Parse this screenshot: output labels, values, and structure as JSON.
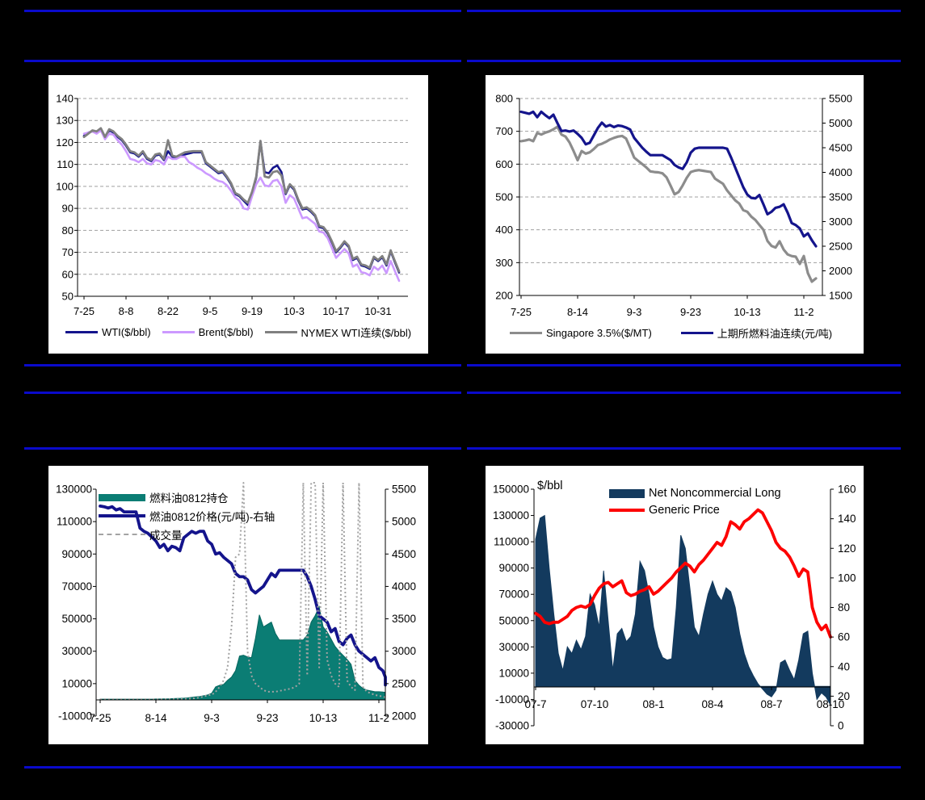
{
  "page": {
    "background": "#000000",
    "divider_color": "#0a0acb",
    "panel_background": "#ffffff"
  },
  "chart_data": [
    {
      "id": "crude-oil-prices",
      "type": "line",
      "grid": "dashed",
      "x_tick_labels": [
        "7-25",
        "8-8",
        "8-22",
        "9-5",
        "9-19",
        "10-3",
        "10-17",
        "10-31"
      ],
      "tick_every": 10,
      "left_axis": {
        "tick_labels": [
          "140",
          "130",
          "120",
          "110",
          "100",
          "90",
          "80",
          "70",
          "60",
          "50"
        ],
        "range": [
          50,
          140
        ]
      },
      "series": [
        {
          "name": "WTI($/bbl)",
          "style": "line",
          "axis": "left",
          "color": "#14148c",
          "width": 2.6,
          "values": [
            123,
            124.5,
            125,
            124.5,
            126,
            122,
            125.5,
            124.5,
            122.5,
            121,
            118.5,
            115.5,
            115,
            113.5,
            115.5,
            112.5,
            111.5,
            114,
            114.5,
            112,
            116,
            113.5,
            113,
            114,
            114.5,
            115,
            115.5,
            115.5,
            115.5,
            110.5,
            109,
            107.5,
            106,
            106.5,
            104,
            101,
            96.5,
            95.5,
            93.5,
            91.5,
            97,
            104,
            120.5,
            106.5,
            106,
            108.5,
            109.5,
            106.5,
            96.5,
            100.5,
            98.5,
            93.5,
            89.5,
            90,
            88.5,
            86.5,
            81.5,
            81,
            78.5,
            74.5,
            70,
            72,
            74.5,
            72.5,
            66.5,
            67.5,
            64,
            63.5,
            62.5,
            67.5,
            66,
            67.8,
            64,
            70.5,
            65.5,
            60.8
          ]
        },
        {
          "name": "Brent($/bbl)",
          "style": "line",
          "axis": "left",
          "color": "#cc99ff",
          "width": 2.6,
          "values": [
            124,
            124.5,
            125,
            124,
            125.5,
            121.5,
            124,
            123.5,
            121,
            119,
            116,
            112.5,
            112,
            111,
            112.5,
            110.5,
            110,
            112,
            111.5,
            110,
            113.5,
            112.5,
            112.5,
            113.5,
            113.5,
            111,
            110,
            108.5,
            107.5,
            106,
            105,
            103.5,
            102.5,
            102,
            100.5,
            98,
            95,
            93.5,
            90,
            89.5,
            95.5,
            101,
            104,
            100.5,
            100,
            102.5,
            103,
            100,
            92.5,
            96,
            94.5,
            90,
            85.5,
            86,
            84.5,
            83,
            79.5,
            79,
            76.5,
            72,
            67.5,
            69.5,
            71.5,
            69.5,
            63.5,
            64.5,
            61,
            60.5,
            59.5,
            63.5,
            62,
            64,
            60.5,
            66,
            61.5,
            57
          ]
        },
        {
          "name": "NYMEX WTI连续($/bbl)",
          "style": "line",
          "axis": "left",
          "color": "#808080",
          "width": 2.8,
          "values": [
            122.5,
            124,
            125.5,
            125,
            126.5,
            122.5,
            126,
            125,
            123,
            121.5,
            119,
            116,
            115.5,
            114,
            116,
            113,
            112,
            114.5,
            115,
            112.5,
            121,
            114,
            113.5,
            114.5,
            115.5,
            115.8,
            116,
            116,
            116,
            111,
            109.5,
            108,
            106.5,
            107,
            104.5,
            101.5,
            97,
            96,
            94,
            92.5,
            97.5,
            104.5,
            120.7,
            104.5,
            104,
            106.5,
            107,
            105,
            97,
            101,
            99,
            94,
            90,
            90.5,
            89,
            87,
            82,
            81.5,
            79,
            75,
            70.5,
            72.5,
            75,
            73,
            67,
            68,
            64.5,
            64,
            63,
            68,
            66.5,
            68.3,
            64.5,
            70.9,
            66,
            61.3
          ]
        }
      ]
    },
    {
      "id": "fuel-oil-singapore-shanghai",
      "type": "line",
      "grid": "dashed",
      "x_tick_labels": [
        "7-25",
        "8-14",
        "9-3",
        "9-23",
        "10-13",
        "11-2"
      ],
      "tick_every": 14,
      "left_axis": {
        "tick_labels": [
          "800",
          "700",
          "600",
          "500",
          "400",
          "300",
          "200"
        ],
        "range": [
          200,
          800
        ]
      },
      "right_axis": {
        "tick_labels": [
          "5500",
          "5000",
          "4500",
          "4000",
          "3500",
          "3000",
          "2500",
          "2000",
          "1500"
        ],
        "range": [
          1500,
          5500
        ]
      },
      "series": [
        {
          "name": "Singapore 3.5%($/MT)",
          "style": "line",
          "axis": "left",
          "color": "#8c8c8c",
          "width": 3.2,
          "values": [
            670,
            672,
            675,
            670,
            695,
            690,
            696,
            700,
            706,
            714,
            690,
            684,
            666,
            640,
            612,
            640,
            632,
            636,
            646,
            658,
            662,
            668,
            675,
            680,
            684,
            686,
            678,
            650,
            620,
            610,
            600,
            590,
            578,
            576,
            575,
            572,
            560,
            535,
            508,
            515,
            535,
            558,
            576,
            580,
            582,
            580,
            578,
            576,
            556,
            548,
            540,
            520,
            505,
            490,
            480,
            460,
            455,
            440,
            430,
            415,
            400,
            366,
            351,
            346,
            365,
            340,
            325,
            320,
            318,
            296,
            320,
            268,
            242,
            252
          ]
        },
        {
          "name": "上期所燃料油连续(元/吨)",
          "style": "line",
          "axis": "right",
          "color": "#14148c",
          "width": 3.2,
          "values": [
            5230,
            5210,
            5190,
            5230,
            5120,
            5230,
            5160,
            5100,
            5170,
            5000,
            4840,
            4850,
            4830,
            4850,
            4780,
            4700,
            4570,
            4600,
            4750,
            4900,
            5010,
            4930,
            4960,
            4920,
            4950,
            4940,
            4910,
            4870,
            4700,
            4600,
            4500,
            4420,
            4350,
            4350,
            4350,
            4350,
            4300,
            4250,
            4150,
            4100,
            4070,
            4200,
            4400,
            4480,
            4500,
            4500,
            4500,
            4500,
            4500,
            4500,
            4500,
            4480,
            4300,
            4100,
            3900,
            3700,
            3550,
            3480,
            3470,
            3540,
            3350,
            3150,
            3200,
            3280,
            3300,
            3350,
            3180,
            2970,
            2930,
            2860,
            2700,
            2760,
            2620,
            2500
          ]
        }
      ]
    },
    {
      "id": "fuel-oil-0812-contract",
      "type": "area",
      "grid": "none",
      "x_tick_labels": [
        "7-25",
        "8-14",
        "9-3",
        "9-23",
        "10-13",
        "11-2"
      ],
      "tick_every": 14,
      "left_axis": {
        "tick_labels": [
          "130000",
          "110000",
          "90000",
          "70000",
          "50000",
          "30000",
          "10000",
          "-10000"
        ],
        "range": [
          -10000,
          130000
        ]
      },
      "right_axis": {
        "tick_labels": [
          "5500",
          "5000",
          "4500",
          "4000",
          "3500",
          "3000",
          "2500",
          "2000"
        ],
        "range": [
          2000,
          5500
        ]
      },
      "series": [
        {
          "name": "燃料油0812持仓",
          "style": "area",
          "axis": "left",
          "color": "#0b7d74",
          "stroke": "#06665e",
          "values": [
            400,
            400,
            400,
            400,
            400,
            400,
            400,
            400,
            400,
            400,
            400,
            400,
            400,
            400,
            500,
            500,
            600,
            600,
            700,
            800,
            900,
            1000,
            1200,
            1500,
            1800,
            2000,
            2500,
            3000,
            4000,
            8000,
            9000,
            9500,
            12000,
            14000,
            18000,
            27000,
            27500,
            26500,
            26000,
            38000,
            52500,
            45000,
            46500,
            48000,
            41000,
            37000,
            37000,
            37000,
            37000,
            37000,
            37000,
            37000,
            40000,
            48000,
            52000,
            57500,
            45000,
            42000,
            37500,
            33000,
            30000,
            27500,
            25000,
            22000,
            12000,
            9000,
            7000,
            6000,
            5500,
            5000,
            5000,
            4800,
            4600,
            4500
          ]
        },
        {
          "name": "燃油0812价格(元/吨)-右轴",
          "style": "line",
          "axis": "right",
          "color": "#14148c",
          "width": 3.8,
          "values": [
            5240,
            5230,
            5210,
            5230,
            5180,
            5200,
            5150,
            5150,
            5150,
            5150,
            4900,
            4850,
            4820,
            4760,
            4700,
            4600,
            4650,
            4550,
            4620,
            4600,
            4550,
            4750,
            4800,
            4850,
            4820,
            4850,
            4850,
            4700,
            4650,
            4500,
            4520,
            4450,
            4400,
            4350,
            4200,
            4150,
            4150,
            4100,
            3950,
            3900,
            3950,
            4000,
            4100,
            4200,
            4150,
            4250,
            4250,
            4250,
            4250,
            4250,
            4250,
            4250,
            4150,
            4000,
            3800,
            3550,
            3500,
            3450,
            3300,
            3350,
            3150,
            3100,
            3200,
            3250,
            3100,
            3000,
            2950,
            2900,
            2850,
            2900,
            2750,
            2700,
            2600,
            2480
          ]
        },
        {
          "name": "成交量",
          "style": "dashline",
          "axis": "left",
          "color": "#a3a3a3",
          "width": 2,
          "values": [
            300,
            300,
            300,
            300,
            300,
            300,
            300,
            300,
            300,
            300,
            300,
            300,
            300,
            300,
            300,
            300,
            300,
            300,
            300,
            300,
            400,
            500,
            600,
            800,
            1000,
            1500,
            2000,
            3000,
            3000,
            5000,
            8000,
            12000,
            20000,
            45000,
            88000,
            90000,
            134000,
            30000,
            15000,
            10000,
            8000,
            6000,
            5000,
            5000,
            5000,
            5500,
            6000,
            6500,
            7000,
            8000,
            10000,
            134000,
            15000,
            134000,
            134000,
            20000,
            134000,
            25000,
            15000,
            10000,
            8000,
            134000,
            12000,
            8000,
            6000,
            134000,
            8000,
            5000,
            4000,
            3000,
            2500,
            2000,
            1500,
            1000
          ]
        }
      ]
    },
    {
      "id": "net-noncommercial-long",
      "type": "area",
      "grid": "none",
      "unit_label": "$/bbl",
      "x_tick_labels": [
        "07-7",
        "07-10",
        "08-1",
        "08-4",
        "08-7",
        "08-10"
      ],
      "tick_every": 13,
      "left_axis": {
        "tick_labels": [
          "150000",
          "130000",
          "110000",
          "90000",
          "70000",
          "50000",
          "30000",
          "10000",
          "-10000",
          "-30000"
        ],
        "range": [
          -30000,
          150000
        ]
      },
      "right_axis": {
        "tick_labels": [
          "160",
          "140",
          "120",
          "100",
          "80",
          "60",
          "40",
          "20",
          "0"
        ],
        "range": [
          0,
          160
        ]
      },
      "series": [
        {
          "name": "Net Noncommercial Long",
          "style": "area",
          "axis": "left",
          "color": "#133a5e",
          "stroke": "#133a5e",
          "values": [
            112000,
            128000,
            130000,
            90000,
            55000,
            25000,
            12000,
            30000,
            25000,
            35000,
            28000,
            38000,
            70000,
            62000,
            45000,
            88000,
            50000,
            12000,
            40000,
            44000,
            34000,
            38000,
            55000,
            95000,
            88000,
            70000,
            45000,
            30000,
            22000,
            20000,
            21000,
            60000,
            115000,
            105000,
            75000,
            45000,
            38000,
            55000,
            70000,
            80000,
            70000,
            65000,
            75000,
            72000,
            60000,
            40000,
            25000,
            15000,
            8000,
            2000,
            -2000,
            -6000,
            -8000,
            -3000,
            18000,
            20000,
            12000,
            5000,
            20000,
            40000,
            42000,
            10000,
            -10000,
            -5000,
            -8000,
            -14000
          ]
        },
        {
          "name": "Generic Price",
          "style": "line",
          "axis": "right",
          "color": "#fd0000",
          "width": 3.8,
          "values": [
            76,
            74,
            70,
            69,
            70,
            70,
            72,
            74,
            78,
            80,
            81,
            80,
            82,
            88,
            93,
            96,
            97,
            94,
            96,
            98,
            90,
            88,
            89,
            91,
            92,
            94,
            89,
            91,
            94,
            97,
            100,
            104,
            107,
            110,
            108,
            104,
            109,
            112,
            116,
            120,
            124,
            122,
            128,
            138,
            136,
            133,
            138,
            140,
            143,
            146,
            144,
            138,
            132,
            124,
            120,
            118,
            114,
            108,
            101,
            106,
            104,
            80,
            70,
            65,
            68,
            60
          ]
        }
      ]
    }
  ]
}
